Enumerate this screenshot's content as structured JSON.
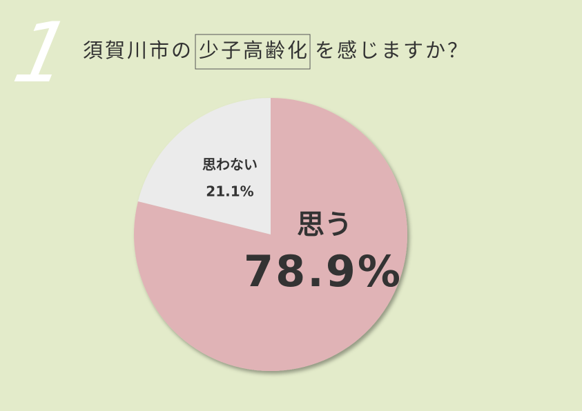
{
  "question_number": "1",
  "chart_data": {
    "type": "pie",
    "title_parts": [
      "須賀川市の",
      "少子高齢化",
      "を感じますか？"
    ],
    "title_highlight": 1,
    "categories": [
      "思う",
      "思わない"
    ],
    "values": [
      78.9,
      21.1
    ],
    "value_labels": [
      "78.9%",
      "21.1%"
    ],
    "colors": [
      "#e0b3b6",
      "#ebebeb"
    ]
  }
}
